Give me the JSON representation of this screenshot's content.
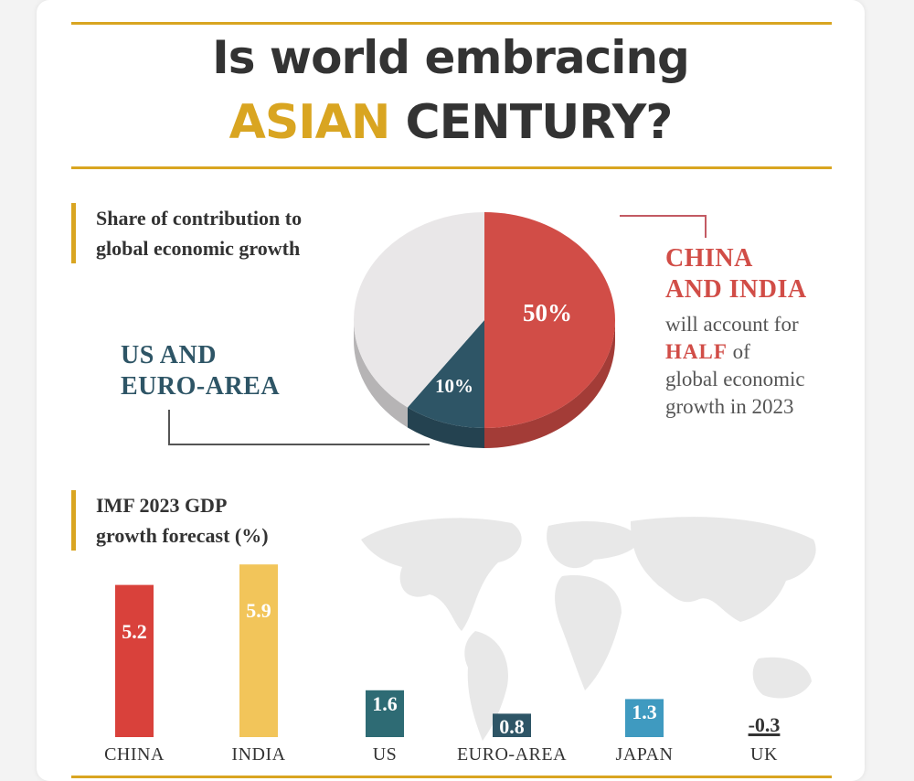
{
  "header": {
    "title_line1": "Is world embracing",
    "title_accent": "ASIAN",
    "title_rest": "CENTURY?"
  },
  "pie_section": {
    "label_line1": "Share of contribution to",
    "label_line2": "global economic growth",
    "left_callout_line1": "US AND",
    "left_callout_line2": "EURO-AREA",
    "right_callout_head1": "CHINA",
    "right_callout_head2": "AND INDIA",
    "right_callout_body1": "will account for",
    "right_callout_highlight": "HALF",
    "right_callout_body2": "of",
    "right_callout_body3": "global economic",
    "right_callout_body4": "growth in 2023"
  },
  "bar_section": {
    "label_line1": "IMF 2023 GDP",
    "label_line2": "growth forecast (%)"
  },
  "colors": {
    "accent": "#d9a521",
    "china_india": "#d14d47",
    "us_euro": "#2e5566",
    "other": "#e9e7e8",
    "india_bar": "#f2c55a",
    "japan_bar": "#3f9ac0",
    "us_bar": "#2e6b74"
  },
  "chart_data": [
    {
      "type": "pie",
      "title": "Share of contribution to global economic growth",
      "slices": [
        {
          "label": "CHINA AND INDIA",
          "value": 50,
          "display": "50%",
          "color": "#d14d47"
        },
        {
          "label": "US AND EURO-AREA",
          "value": 10,
          "display": "10%",
          "color": "#2e5566"
        },
        {
          "label": "",
          "value": 40,
          "display": "",
          "color": "#e9e7e8"
        }
      ]
    },
    {
      "type": "bar",
      "title": "IMF 2023 GDP growth forecast (%)",
      "categories": [
        "CHINA",
        "INDIA",
        "US",
        "EURO-AREA",
        "JAPAN",
        "UK"
      ],
      "values": [
        5.2,
        5.9,
        1.6,
        0.8,
        1.3,
        -0.3
      ],
      "labels": [
        "5.2",
        "5.9",
        "1.6",
        "0.8",
        "1.3",
        "-0.3"
      ],
      "colors": [
        "#d9413b",
        "#f2c55a",
        "#2e6b74",
        "#2e5566",
        "#3f9ac0",
        "#222222"
      ]
    }
  ]
}
